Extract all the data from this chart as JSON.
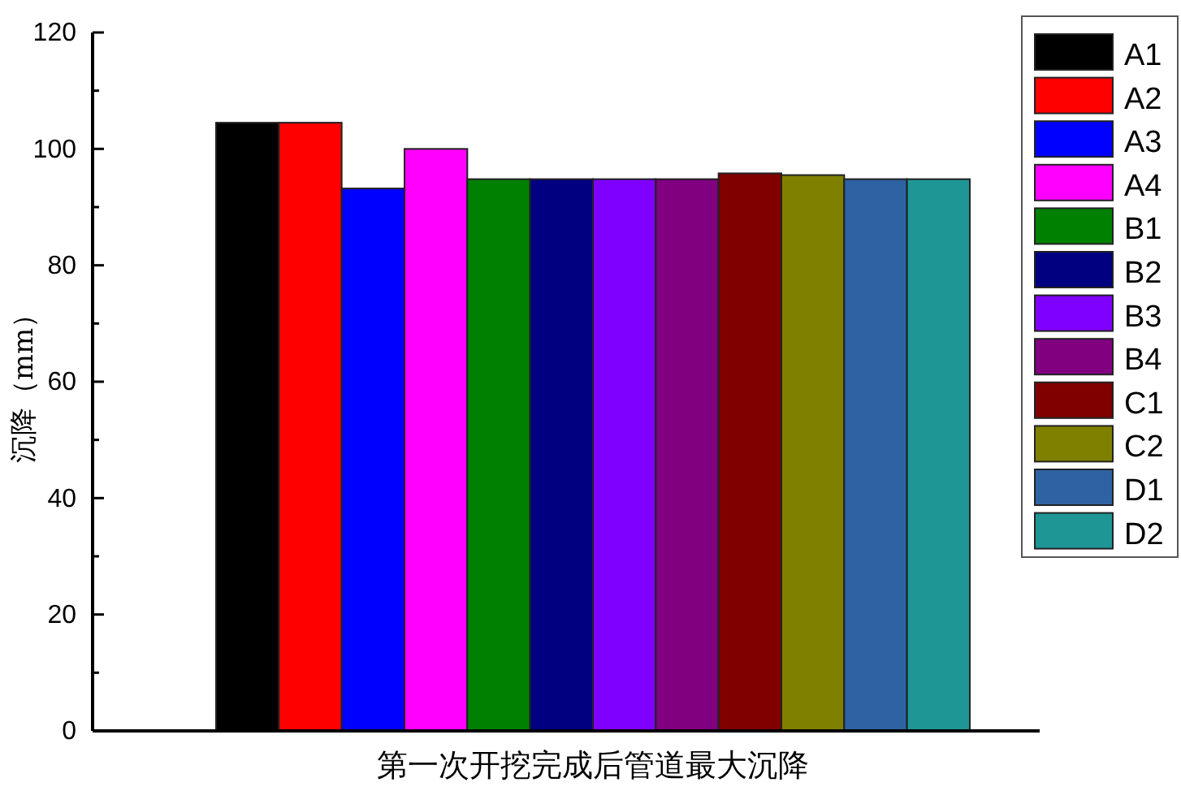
{
  "chart_data": {
    "type": "bar",
    "ylabel": "沉降（mm）",
    "categories": [
      "第一次开挖完成后管道最大沉降"
    ],
    "series": [
      {
        "name": "A1",
        "color": "#000000",
        "values": [
          104.5
        ]
      },
      {
        "name": "A2",
        "color": "#ff0000",
        "values": [
          104.5
        ]
      },
      {
        "name": "A3",
        "color": "#0000ff",
        "values": [
          93.2
        ]
      },
      {
        "name": "A4",
        "color": "#ff00ff",
        "values": [
          100
        ]
      },
      {
        "name": "B1",
        "color": "#008000",
        "values": [
          94.8
        ]
      },
      {
        "name": "B2",
        "color": "#000080",
        "values": [
          94.8
        ]
      },
      {
        "name": "B3",
        "color": "#8000ff",
        "values": [
          94.8
        ]
      },
      {
        "name": "B4",
        "color": "#800080",
        "values": [
          94.8
        ]
      },
      {
        "name": "C1",
        "color": "#800000",
        "values": [
          95.8
        ]
      },
      {
        "name": "C2",
        "color": "#808000",
        "values": [
          95.5
        ]
      },
      {
        "name": "D1",
        "color": "#2e63a3",
        "values": [
          94.8
        ]
      },
      {
        "name": "D2",
        "color": "#1f9696",
        "values": [
          94.8
        ]
      }
    ],
    "ylim": [
      0,
      120
    ],
    "yticks": [
      0,
      {
        "value": 10,
        "label": null
      },
      20,
      {
        "value": 30,
        "label": null
      },
      40,
      {
        "value": 50,
        "label": null
      },
      60,
      {
        "value": 70,
        "label": null
      },
      80,
      {
        "value": 90,
        "label": null
      },
      100,
      {
        "value": 110,
        "label": null
      },
      120
    ],
    "legend": "right",
    "grid": false
  }
}
